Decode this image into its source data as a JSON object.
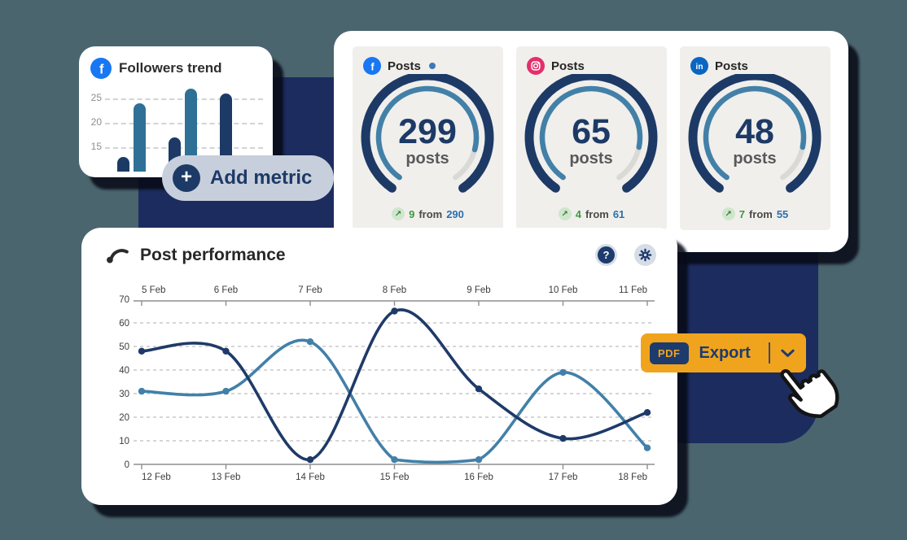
{
  "colors": {
    "background": "#4b656e",
    "navy_panel": "#1c2c5f",
    "dark_series": "#1e3a68",
    "steel_series": "#4280a8",
    "accent_orange": "#f0a41e",
    "badge_navy": "#1d3b6d",
    "delta_green": "#3c9a3f",
    "previous_blue": "#2d6fad",
    "facebook_blue": "#1877f2",
    "instagram_pink": "#e1306c",
    "linkedin_blue": "#0a66c2",
    "gauge_rest_gray": "#d9d9d5"
  },
  "followers_card": {
    "title": "Followers trend",
    "icon": "facebook"
  },
  "add_metric": {
    "label": "Add metric"
  },
  "gauge_cards": [
    {
      "network": "facebook",
      "title": "Posts",
      "has_dot": true,
      "value": "299",
      "unit": "posts",
      "delta": "9",
      "from_word": "from",
      "previous": "290",
      "percent": 0.86
    },
    {
      "network": "instagram",
      "title": "Posts",
      "has_dot": false,
      "value": "65",
      "unit": "posts",
      "delta": "4",
      "from_word": "from",
      "previous": "61",
      "percent": 0.85
    },
    {
      "network": "linkedin",
      "title": "Posts",
      "has_dot": false,
      "value": "48",
      "unit": "posts",
      "delta": "7",
      "from_word": "from",
      "previous": "55",
      "percent": 0.85
    }
  ],
  "post_performance": {
    "title": "Post performance",
    "help_label": "?"
  },
  "export_button": {
    "badge": "PDF",
    "label": "Export"
  },
  "chart_data": [
    {
      "id": "followers_trend",
      "type": "bar",
      "title": "Followers trend",
      "values": [
        13,
        24,
        17,
        27,
        26
      ],
      "bar_colors": [
        "#1d3a66",
        "#2f7096",
        "#1d3a66",
        "#2f7096",
        "#1d3a66"
      ],
      "yticks": [
        15,
        20,
        25
      ],
      "ylim": [
        10,
        28
      ],
      "grid": "dashed horizontal"
    },
    {
      "id": "posts_gauges",
      "type": "gauge",
      "cards": [
        {
          "label": "Posts",
          "value": 299,
          "previous": 290,
          "delta": 9
        },
        {
          "label": "Posts",
          "value": 65,
          "previous": 61,
          "delta": 4
        },
        {
          "label": "Posts",
          "value": 48,
          "previous": 55,
          "delta": 7
        }
      ]
    },
    {
      "id": "post_performance",
      "type": "line",
      "title": "Post performance",
      "x_top": [
        "5 Feb",
        "6 Feb",
        "7 Feb",
        "8 Feb",
        "9 Feb",
        "10 Feb",
        "11 Feb"
      ],
      "x_bottom": [
        "12 Feb",
        "13 Feb",
        "14 Feb",
        "15 Feb",
        "16 Feb",
        "17 Feb",
        "18 Feb"
      ],
      "yticks": [
        0,
        10,
        20,
        30,
        40,
        50,
        60,
        70
      ],
      "ylim": [
        0,
        70
      ],
      "grid": "dashed horizontal",
      "legend": "none",
      "series": [
        {
          "name": "steel_blue_line",
          "color": "#4280a8",
          "values": [
            31,
            31,
            52,
            2,
            2,
            39,
            7
          ]
        },
        {
          "name": "dark_navy_line",
          "color": "#1e3a68",
          "values": [
            48,
            48,
            2,
            65,
            32,
            11,
            22
          ]
        }
      ]
    }
  ]
}
